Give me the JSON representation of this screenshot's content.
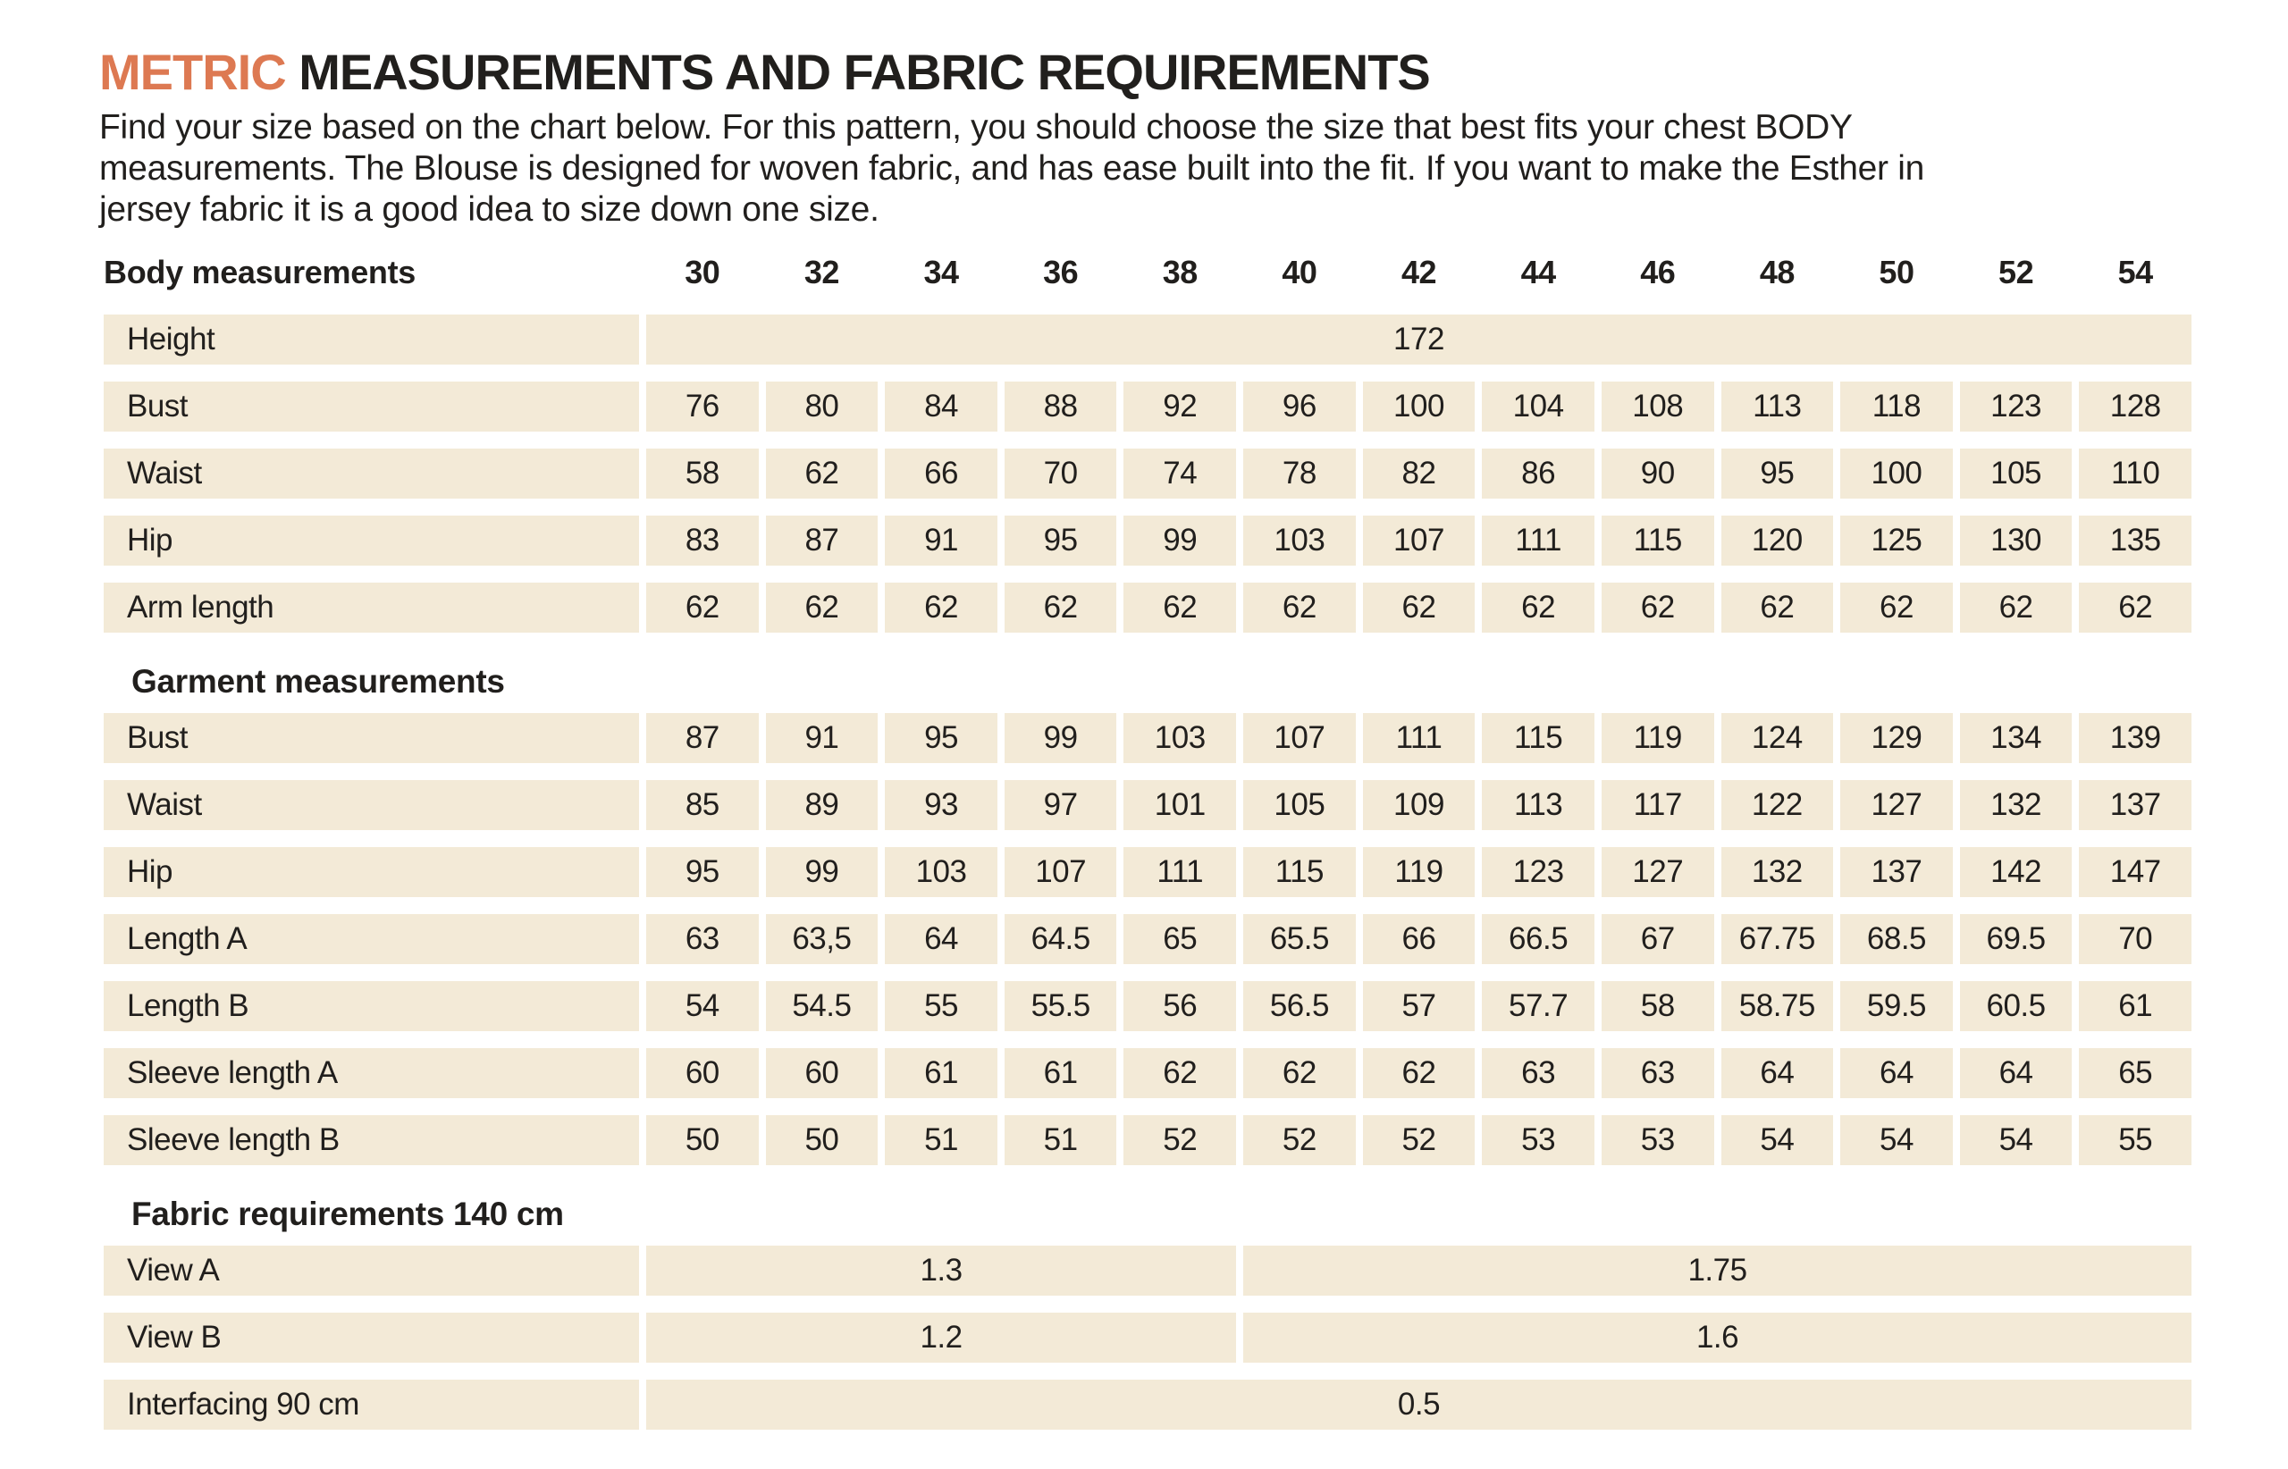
{
  "title": {
    "highlight": "METRIC",
    "rest": " MEASUREMENTS AND FABRIC REQUIREMENTS"
  },
  "intro": {
    "lines": [
      "Find your size based on the chart below. For this pattern, you should choose the size that best fits your chest BODY",
      "measurements.  The Blouse is designed for woven fabric, and has ease built into the fit. If you want to make the Esther in",
      "jersey fabric it is a good idea to size down one size."
    ]
  },
  "table": {
    "head_label": "Body measurements",
    "sizes": [
      "30",
      "32",
      "34",
      "36",
      "38",
      "40",
      "42",
      "44",
      "46",
      "48",
      "50",
      "52",
      "54"
    ],
    "sections": [
      {
        "header": null,
        "rows": [
          {
            "label": "Height",
            "spans": [
              {
                "value": "172",
                "cols": 13
              }
            ]
          },
          {
            "label": "Bust",
            "values": [
              "76",
              "80",
              "84",
              "88",
              "92",
              "96",
              "100",
              "104",
              "108",
              "113",
              "118",
              "123",
              "128"
            ]
          },
          {
            "label": "Waist",
            "values": [
              "58",
              "62",
              "66",
              "70",
              "74",
              "78",
              "82",
              "86",
              "90",
              "95",
              "100",
              "105",
              "110"
            ]
          },
          {
            "label": "Hip",
            "values": [
              "83",
              "87",
              "91",
              "95",
              "99",
              "103",
              "107",
              "111",
              "115",
              "120",
              "125",
              "130",
              "135"
            ]
          },
          {
            "label": "Arm length",
            "values": [
              "62",
              "62",
              "62",
              "62",
              "62",
              "62",
              "62",
              "62",
              "62",
              "62",
              "62",
              "62",
              "62"
            ]
          }
        ]
      },
      {
        "header": "Garment measurements",
        "rows": [
          {
            "label": "Bust",
            "values": [
              "87",
              "91",
              "95",
              "99",
              "103",
              "107",
              "111",
              "115",
              "119",
              "124",
              "129",
              "134",
              "139"
            ]
          },
          {
            "label": "Waist",
            "values": [
              "85",
              "89",
              "93",
              "97",
              "101",
              "105",
              "109",
              "113",
              "117",
              "122",
              "127",
              "132",
              "137"
            ]
          },
          {
            "label": "Hip",
            "values": [
              "95",
              "99",
              "103",
              "107",
              "111",
              "115",
              "119",
              "123",
              "127",
              "132",
              "137",
              "142",
              "147"
            ]
          },
          {
            "label": "Length A",
            "values": [
              "63",
              "63,5",
              "64",
              "64.5",
              "65",
              "65.5",
              "66",
              "66.5",
              "67",
              "67.75",
              "68.5",
              "69.5",
              "70"
            ]
          },
          {
            "label": "Length B",
            "values": [
              "54",
              "54.5",
              "55",
              "55.5",
              "56",
              "56.5",
              "57",
              "57.7",
              "58",
              "58.75",
              "59.5",
              "60.5",
              "61"
            ]
          },
          {
            "label": "Sleeve length A",
            "values": [
              "60",
              "60",
              "61",
              "61",
              "62",
              "62",
              "62",
              "63",
              "63",
              "64",
              "64",
              "64",
              "65"
            ]
          },
          {
            "label": "Sleeve length B",
            "values": [
              "50",
              "50",
              "51",
              "51",
              "52",
              "52",
              "52",
              "53",
              "53",
              "54",
              "54",
              "54",
              "55"
            ]
          }
        ]
      },
      {
        "header": "Fabric requirements 140 cm",
        "rows": [
          {
            "label": "View A",
            "spans": [
              {
                "value": "1.3",
                "cols": 5
              },
              {
                "value": "1.75",
                "cols": 8
              }
            ]
          },
          {
            "label": "View B",
            "spans": [
              {
                "value": "1.2",
                "cols": 5
              },
              {
                "value": "1.6",
                "cols": 8
              }
            ]
          },
          {
            "label": "Interfacing 90 cm",
            "spans": [
              {
                "value": "0.5",
                "cols": 13
              }
            ]
          }
        ]
      }
    ]
  },
  "colors": {
    "accent": "#dd7952",
    "cell_background": "#f3ead7",
    "text": "#211f1d"
  }
}
